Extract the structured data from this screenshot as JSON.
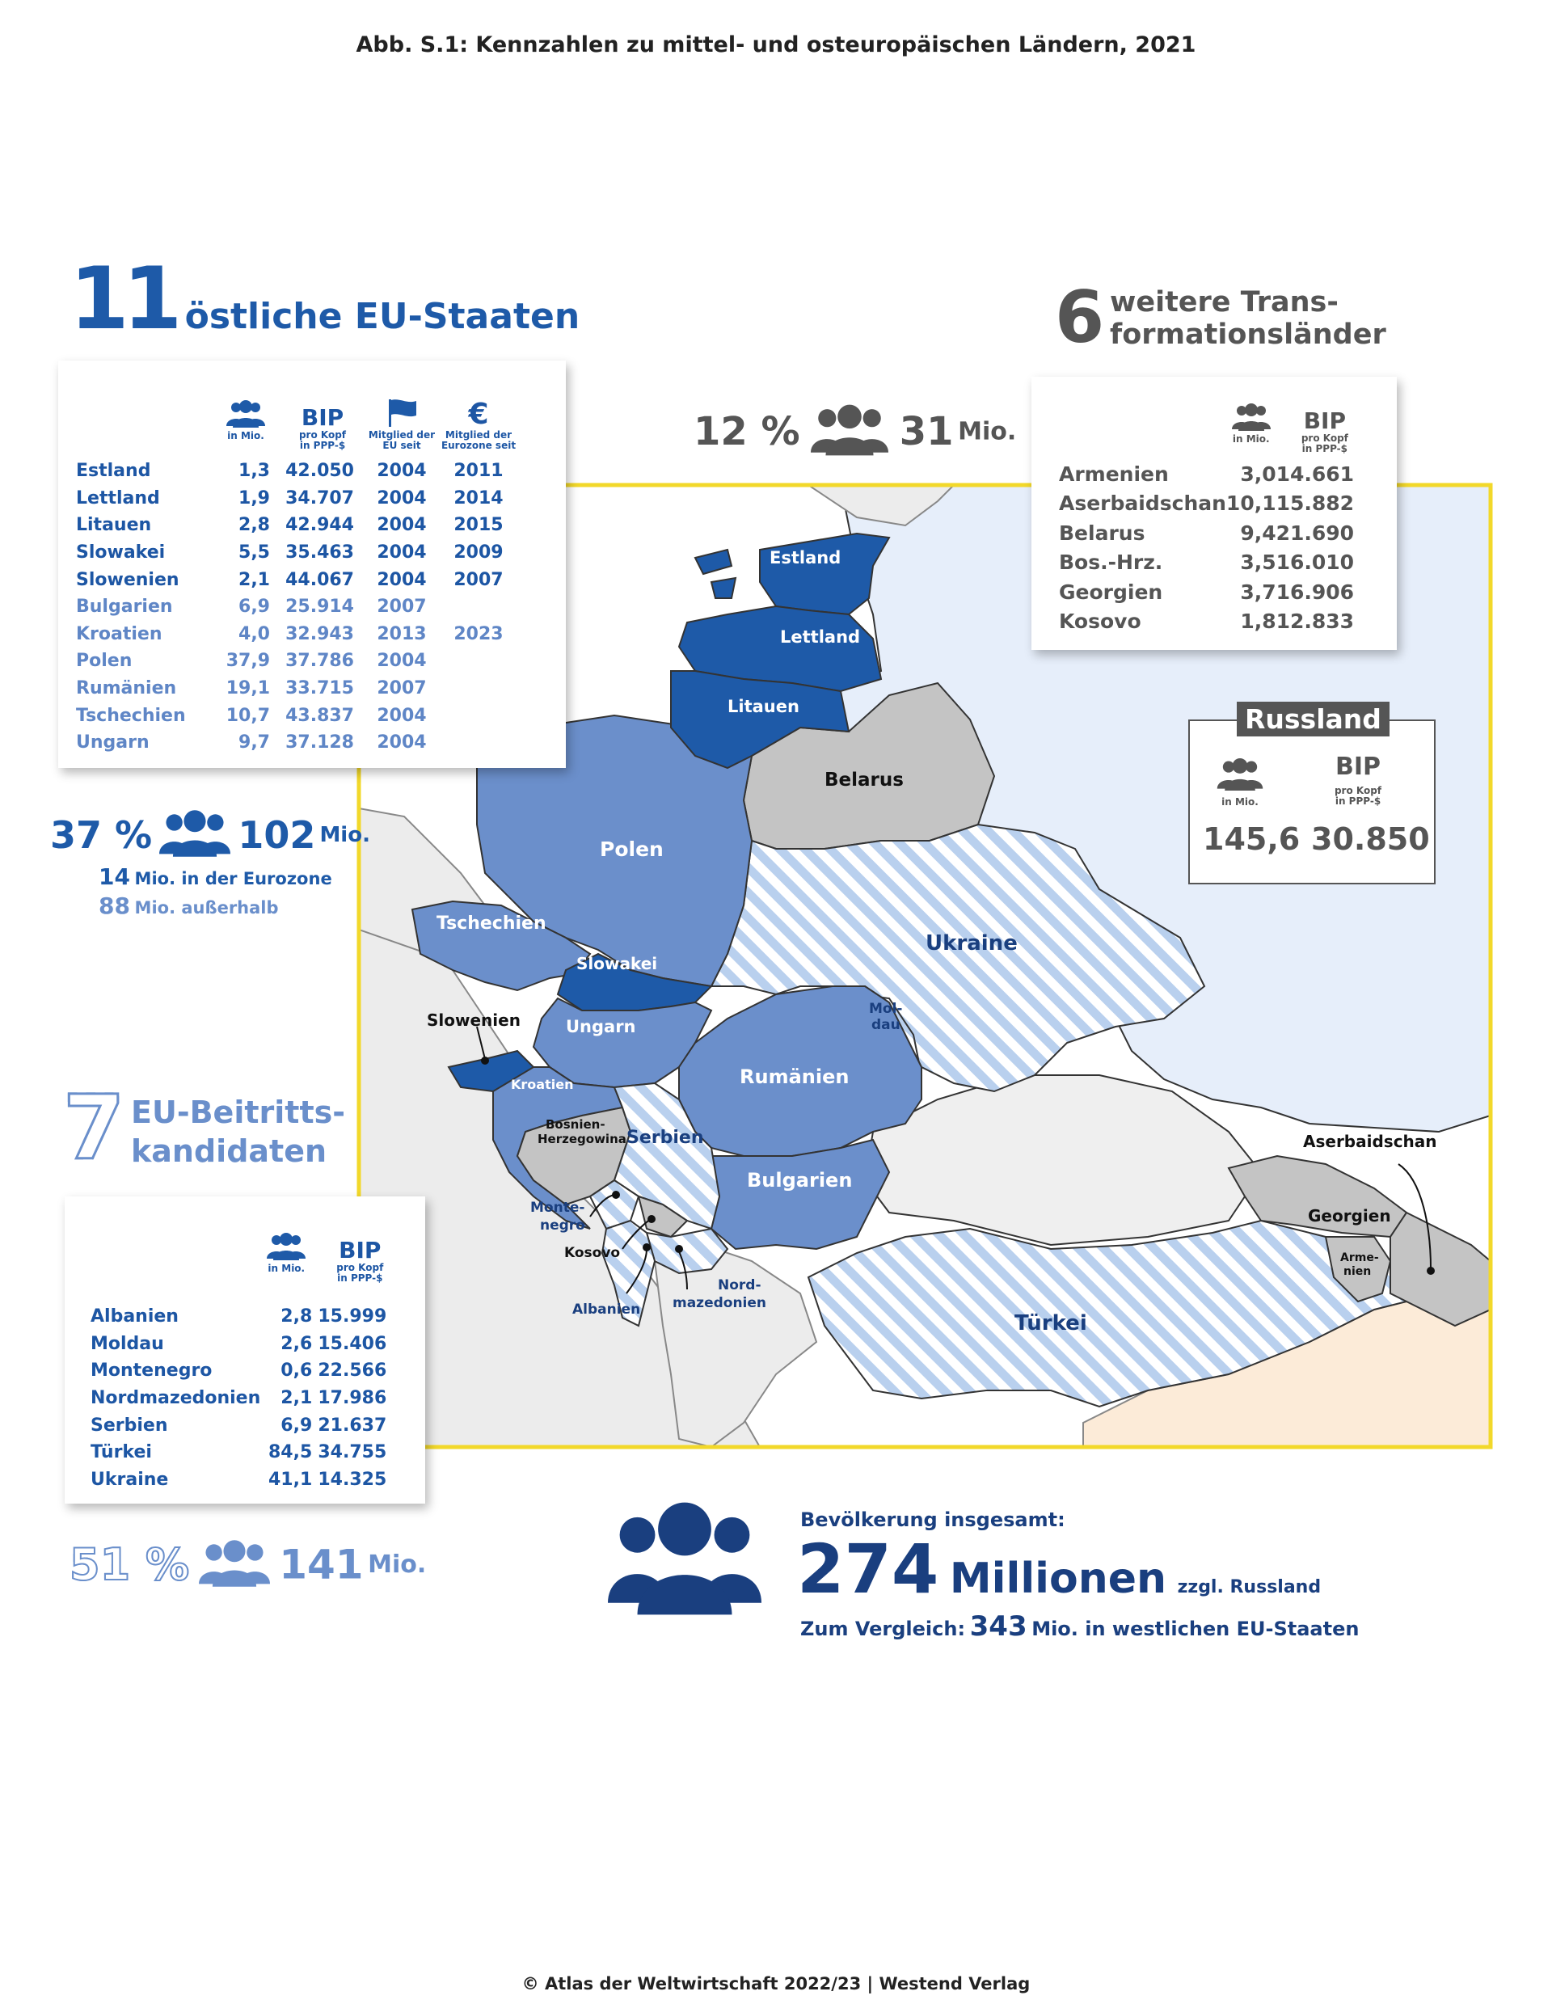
{
  "title": "Abb. S.1: Kennzahlen zu mittel- und osteuropäischen Ländern, 2021",
  "footer": "© Atlas der Weltwirtschaft 2022/23 | Westend Verlag",
  "colors": {
    "eu_euro": "#1e5aa8",
    "eu_other": "#6a8fcb",
    "candidate_stripe": "#b7cfee",
    "transformation": "#c4c4c4",
    "russia": "#e8f0fb",
    "frame": "#f2d82a"
  },
  "eu_east": {
    "count": "11",
    "heading": "östliche EU-Staaten",
    "col_population": "in Mio.",
    "col_bip": "BIP",
    "col_bip_sub": "pro Kopf\nin PPP-$",
    "col_eu_since": "Mitglied der\nEU seit",
    "col_euro_since": "Mitglied der\nEurozone seit",
    "rows": [
      {
        "name": "Estland",
        "pop": "1,3",
        "bip": "42.050",
        "eu": "2004",
        "euro": "2011",
        "euro_member": true
      },
      {
        "name": "Lettland",
        "pop": "1,9",
        "bip": "34.707",
        "eu": "2004",
        "euro": "2014",
        "euro_member": true
      },
      {
        "name": "Litauen",
        "pop": "2,8",
        "bip": "42.944",
        "eu": "2004",
        "euro": "2015",
        "euro_member": true
      },
      {
        "name": "Slowakei",
        "pop": "5,5",
        "bip": "35.463",
        "eu": "2004",
        "euro": "2009",
        "euro_member": true
      },
      {
        "name": "Slowenien",
        "pop": "2,1",
        "bip": "44.067",
        "eu": "2004",
        "euro": "2007",
        "euro_member": true
      },
      {
        "name": "Bulgarien",
        "pop": "6,9",
        "bip": "25.914",
        "eu": "2007",
        "euro": "",
        "euro_member": false
      },
      {
        "name": "Kroatien",
        "pop": "4,0",
        "bip": "32.943",
        "eu": "2013",
        "euro": "2023",
        "euro_member": false
      },
      {
        "name": "Polen",
        "pop": "37,9",
        "bip": "37.786",
        "eu": "2004",
        "euro": "",
        "euro_member": false
      },
      {
        "name": "Rumänien",
        "pop": "19,1",
        "bip": "33.715",
        "eu": "2007",
        "euro": "",
        "euro_member": false
      },
      {
        "name": "Tschechien",
        "pop": "10,7",
        "bip": "43.837",
        "eu": "2004",
        "euro": "",
        "euro_member": false
      },
      {
        "name": "Ungarn",
        "pop": "9,7",
        "bip": "37.128",
        "eu": "2004",
        "euro": "",
        "euro_member": false
      }
    ],
    "share": "37 %",
    "total": "102",
    "unit": "Mio.",
    "eurozone_value": "14",
    "eurozone_text": "Mio. in der Eurozone",
    "outside_value": "88",
    "outside_text": "Mio. außerhalb"
  },
  "transformation": {
    "count": "6",
    "heading_line1": "weitere Trans-",
    "heading_line2": "formationsländer",
    "share": "12 %",
    "total": "31",
    "unit": "Mio.",
    "col_population": "in Mio.",
    "col_bip": "BIP",
    "col_bip_sub": "pro Kopf\nin PPP-$",
    "rows": [
      {
        "name": "Armenien",
        "pop": "3,0",
        "bip": "14.661"
      },
      {
        "name": "Aserbaidschan",
        "pop": "10,1",
        "bip": "15.882"
      },
      {
        "name": "Belarus",
        "pop": "9,4",
        "bip": "21.690"
      },
      {
        "name": "Bos.-Hrz.",
        "pop": "3,5",
        "bip": "16.010"
      },
      {
        "name": "Georgien",
        "pop": "3,7",
        "bip": "16.906"
      },
      {
        "name": "Kosovo",
        "pop": "1,8",
        "bip": "12.833"
      }
    ]
  },
  "russia": {
    "label": "Russland",
    "col_population": "in Mio.",
    "col_bip": "BIP",
    "col_bip_sub": "pro Kopf\nin PPP-$",
    "pop": "145,6",
    "bip": "30.850"
  },
  "candidates": {
    "count": "7",
    "heading_line1": "EU-Beitritts-",
    "heading_line2": "kandidaten",
    "col_population": "in Mio.",
    "col_bip": "BIP",
    "col_bip_sub": "pro Kopf\nin PPP-$",
    "rows": [
      {
        "name": "Albanien",
        "pop": "2,8",
        "bip": "15.999"
      },
      {
        "name": "Moldau",
        "pop": "2,6",
        "bip": "15.406"
      },
      {
        "name": "Montenegro",
        "pop": "0,6",
        "bip": "22.566"
      },
      {
        "name": "Nordmazedonien",
        "pop": "2,1",
        "bip": "17.986"
      },
      {
        "name": "Serbien",
        "pop": "6,9",
        "bip": "21.637"
      },
      {
        "name": "Türkei",
        "pop": "84,5",
        "bip": "34.755"
      },
      {
        "name": "Ukraine",
        "pop": "41,1",
        "bip": "14.325"
      }
    ],
    "share": "51 %",
    "total": "141",
    "unit": "Mio."
  },
  "population_total": {
    "label": "Bevölkerung insgesamt:",
    "value": "274",
    "value_word": "Millionen",
    "qualifier": "zzgl. Russland",
    "compare_prefix": "Zum Vergleich:",
    "compare_value": "343",
    "compare_suffix": "Mio. in westlichen EU-Staaten"
  },
  "map_labels": {
    "estland": "Estland",
    "lettland": "Lettland",
    "litauen": "Litauen",
    "belarus": "Belarus",
    "polen": "Polen",
    "tschechien": "Tschechien",
    "slowakei": "Slowakei",
    "ukraine": "Ukraine",
    "moldau_1": "Mol-",
    "moldau_2": "dau",
    "slowenien": "Slowenien",
    "ungarn": "Ungarn",
    "rumaenien": "Rumänien",
    "kroatien": "Kroatien",
    "bosnien_1": "Bosnien-",
    "bosnien_2": "Herzegowina",
    "serbien": "Serbien",
    "bulgarien": "Bulgarien",
    "montenegro_1": "Monte-",
    "montenegro_2": "negro",
    "kosovo": "Kosovo",
    "albanien": "Albanien",
    "nordmaz_1": "Nord-",
    "nordmaz_2": "mazedonien",
    "tuerkei": "Türkei",
    "georgien": "Georgien",
    "armenien_1": "Arme-",
    "armenien_2": "nien",
    "aserbaidschan": "Aserbaidschan"
  }
}
